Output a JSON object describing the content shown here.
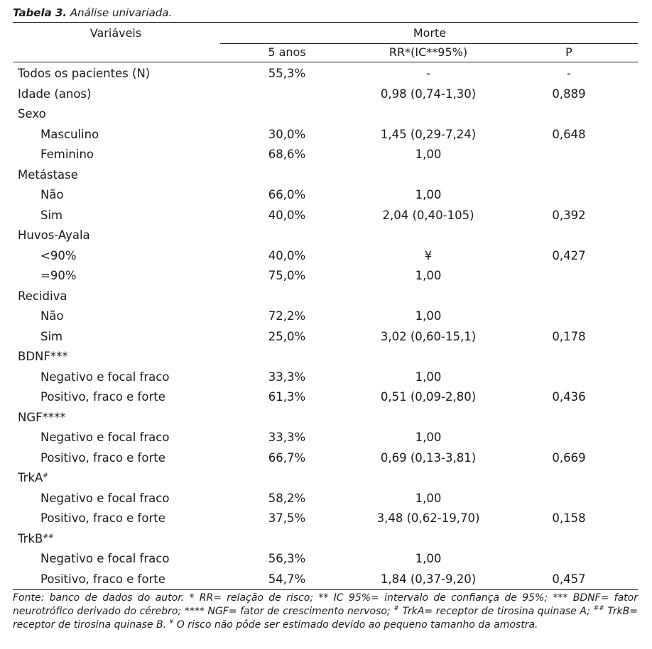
{
  "caption": {
    "label": "Tabela 3.",
    "text": "Análise univariada."
  },
  "header": {
    "variables": "Variáveis",
    "group": "Morte",
    "col1": "5 anos",
    "col2": "RR*(IC**95%)",
    "col3": "P"
  },
  "rows": [
    {
      "label": "Todos os pacientes (N)",
      "sup": "",
      "sub": false,
      "c1": "55,3%",
      "c2": "-",
      "c3": "-"
    },
    {
      "label": "Idade (anos)",
      "sup": "",
      "sub": false,
      "c1": "",
      "c2": "0,98 (0,74-1,30)",
      "c3": "0,889"
    },
    {
      "label": "Sexo",
      "sup": "",
      "sub": false,
      "c1": "",
      "c2": "",
      "c3": ""
    },
    {
      "label": "Masculino",
      "sup": "",
      "sub": true,
      "c1": "30,0%",
      "c2": "1,45 (0,29-7,24)",
      "c3": "0,648"
    },
    {
      "label": "Feminino",
      "sup": "",
      "sub": true,
      "c1": "68,6%",
      "c2": "1,00",
      "c3": ""
    },
    {
      "label": "Metástase",
      "sup": "",
      "sub": false,
      "c1": "",
      "c2": "",
      "c3": ""
    },
    {
      "label": "Não",
      "sup": "",
      "sub": true,
      "c1": "66,0%",
      "c2": "1,00",
      "c3": ""
    },
    {
      "label": "Sim",
      "sup": "",
      "sub": true,
      "c1": "40,0%",
      "c2": "2,04 (0,40-105)",
      "c3": "0,392"
    },
    {
      "label": "Huvos-Ayala",
      "sup": "",
      "sub": false,
      "c1": "",
      "c2": "",
      "c3": ""
    },
    {
      "label": "<90%",
      "sup": "",
      "sub": true,
      "c1": "40,0%",
      "c2": "¥",
      "c3": "0,427"
    },
    {
      "label": "=90%",
      "sup": "",
      "sub": true,
      "c1": "75,0%",
      "c2": "1,00",
      "c3": ""
    },
    {
      "label": "Recidiva",
      "sup": "",
      "sub": false,
      "c1": "",
      "c2": "",
      "c3": ""
    },
    {
      "label": "Não",
      "sup": "",
      "sub": true,
      "c1": "72,2%",
      "c2": "1,00",
      "c3": ""
    },
    {
      "label": "Sim",
      "sup": "",
      "sub": true,
      "c1": "25,0%",
      "c2": "3,02 (0,60-15,1)",
      "c3": "0,178"
    },
    {
      "label": "BDNF***",
      "sup": "",
      "sub": false,
      "c1": "",
      "c2": "",
      "c3": ""
    },
    {
      "label": "Negativo e focal fraco",
      "sup": "",
      "sub": true,
      "c1": "33,3%",
      "c2": "1,00",
      "c3": ""
    },
    {
      "label": "Positivo, fraco e forte",
      "sup": "",
      "sub": true,
      "c1": "61,3%",
      "c2": "0,51 (0,09-2,80)",
      "c3": "0,436"
    },
    {
      "label": "NGF****",
      "sup": "",
      "sub": false,
      "c1": "",
      "c2": "",
      "c3": ""
    },
    {
      "label": "Negativo e focal fraco",
      "sup": "",
      "sub": true,
      "c1": "33,3%",
      "c2": "1,00",
      "c3": ""
    },
    {
      "label": "Positivo, fraco e forte",
      "sup": "",
      "sub": true,
      "c1": "66,7%",
      "c2": "0,69 (0,13-3,81)",
      "c3": "0,669"
    },
    {
      "label": "TrkA",
      "sup": "#",
      "sub": false,
      "c1": "",
      "c2": "",
      "c3": ""
    },
    {
      "label": "Negativo e focal fraco",
      "sup": "",
      "sub": true,
      "c1": "58,2%",
      "c2": "1,00",
      "c3": ""
    },
    {
      "label": "Positivo, fraco e forte",
      "sup": "",
      "sub": true,
      "c1": "37,5%",
      "c2": "3,48 (0,62-19,70)",
      "c3": "0,158"
    },
    {
      "label": "TrkB",
      "sup": "##",
      "sub": false,
      "c1": "",
      "c2": "",
      "c3": ""
    },
    {
      "label": "Negativo e focal fraco",
      "sup": "",
      "sub": true,
      "c1": "56,3%",
      "c2": "1,00",
      "c3": ""
    },
    {
      "label": "Positivo, fraco e forte",
      "sup": "",
      "sub": true,
      "c1": "54,7%",
      "c2": "1,84 (0,37-9,20)",
      "c3": "0,457"
    }
  ],
  "footer": {
    "line1_a": "Fonte: banco de dados do autor. * RR= relação de risco; ** IC 95%= intervalo de confiança de 95%; *** BDNF= fator",
    "line2_a": "neurotrófico derivado do cérebro; **** NGF= fator de crescimento nervoso; ",
    "sup1": "#",
    "line2_b": " TrkA= receptor de tirosina quinase A; ",
    "sup2": "##",
    "line2_c": " TrkB=",
    "line3_a": "receptor de tirosina quinase B. ",
    "sup3": "¥",
    "line3_b": " O risco não pôde ser estimado devido ao pequeno tamanho da amostra."
  }
}
